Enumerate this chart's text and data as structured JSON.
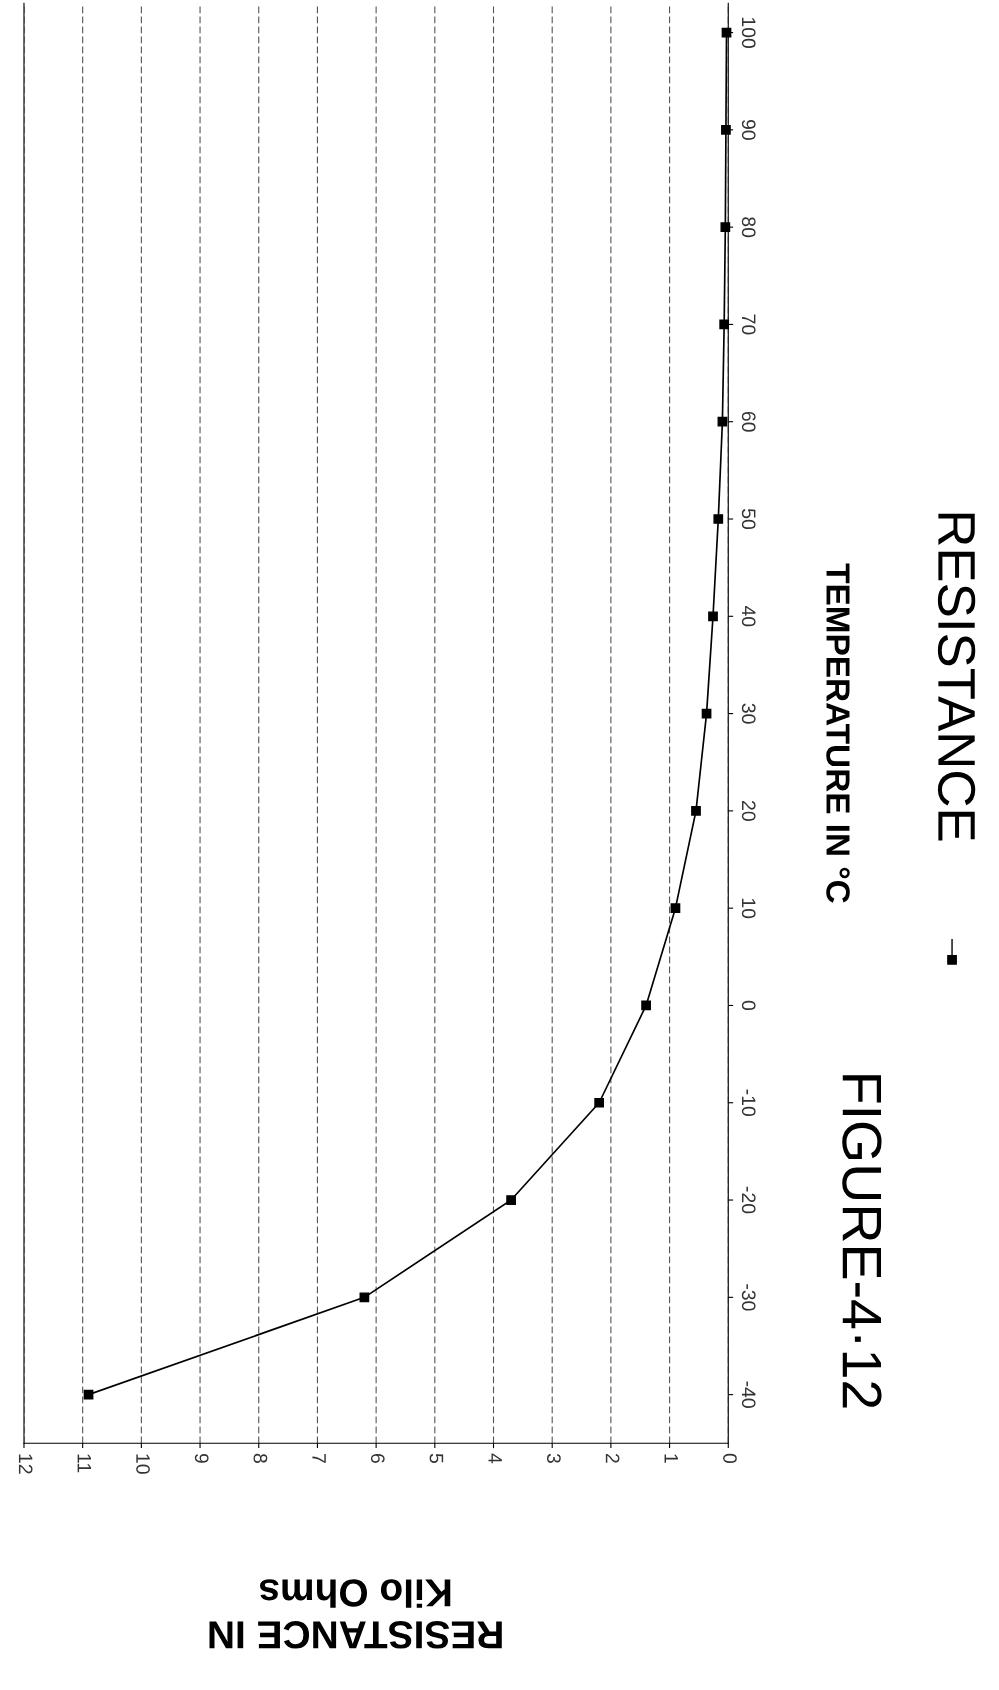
{
  "chart_data": {
    "type": "line",
    "title": "FIGURE-4·12",
    "xlabel": "RESISTANCE IN\nKilo Ohms",
    "ylabel": "TEMPERATURE IN °C",
    "x": [
      10.9,
      6.2,
      3.7,
      2.2,
      1.4,
      0.9,
      0.55,
      0.37,
      0.26,
      0.17,
      0.1,
      0.07,
      0.05,
      0.04,
      0.03
    ],
    "series": [
      {
        "name": "RESISTANCE",
        "color": "#000000",
        "values": [
          -40,
          -30,
          -20,
          -10,
          0,
          10,
          20,
          30,
          40,
          50,
          60,
          70,
          80,
          90,
          100
        ]
      }
    ],
    "xlim": [
      12,
      0
    ],
    "xticks": [
      12,
      11,
      10,
      9,
      8,
      7,
      6,
      5,
      4,
      3,
      2,
      1,
      0
    ],
    "ylim": [
      -45,
      103
    ],
    "yticks": [
      -40,
      -30,
      -20,
      -10,
      0,
      10,
      20,
      30,
      40,
      50,
      60,
      70,
      80,
      90,
      100
    ],
    "grid": "x",
    "legend": "right",
    "marker": "square",
    "line_style": "solid"
  }
}
